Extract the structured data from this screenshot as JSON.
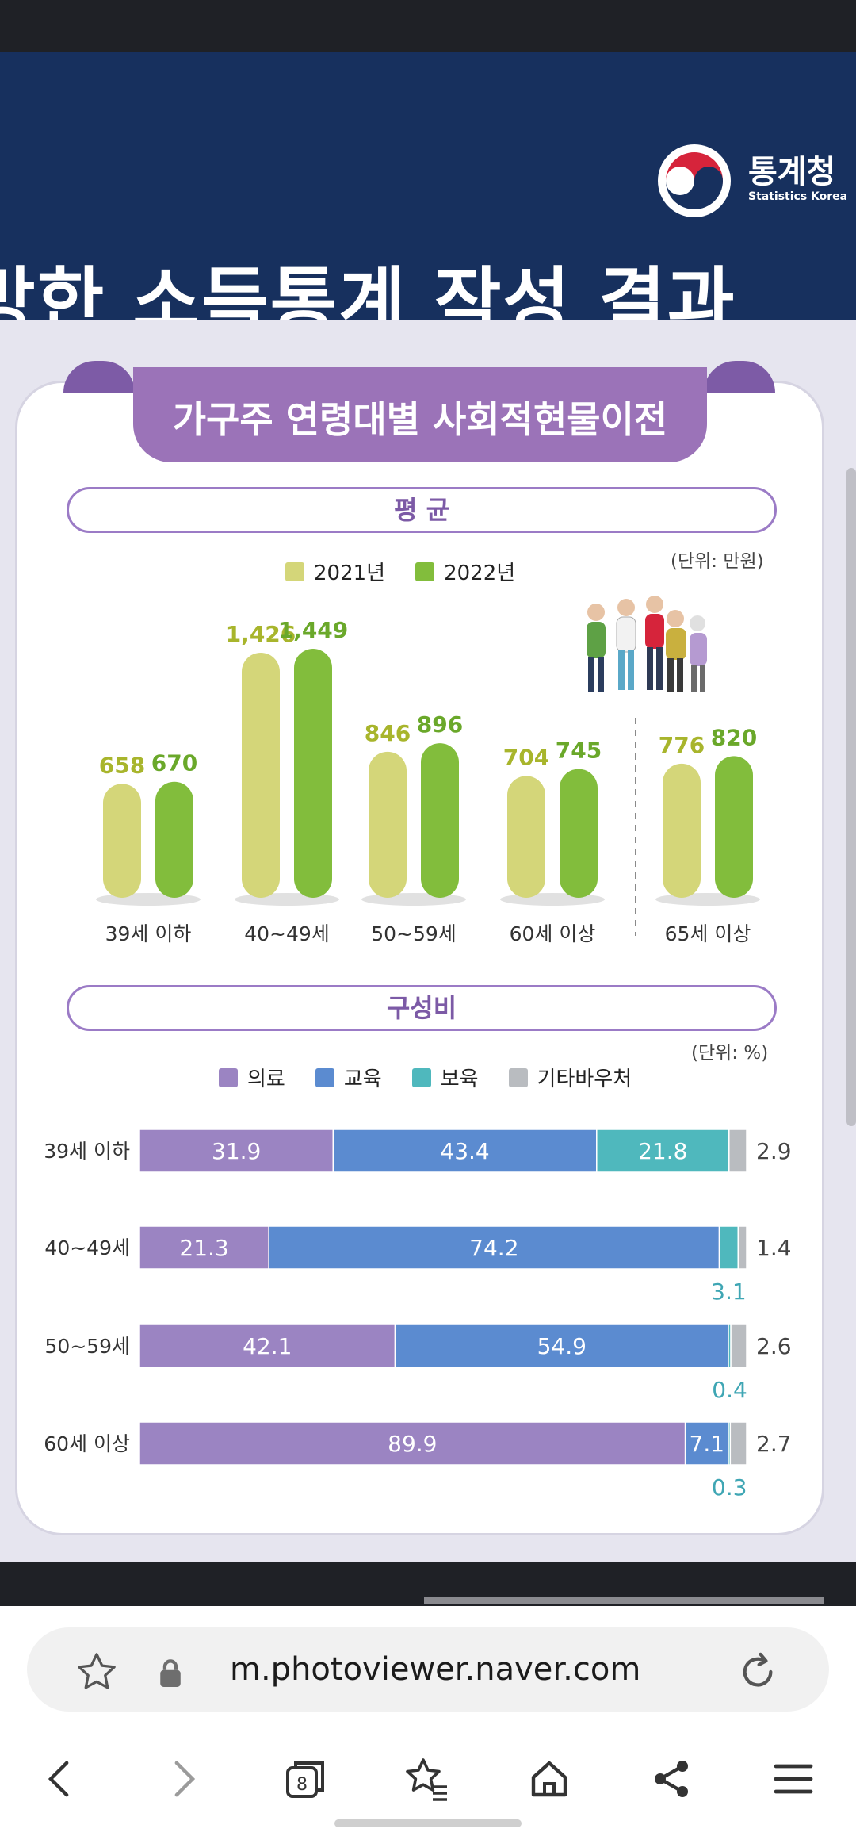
{
  "banner": {
    "title": "방한 소득통계 작성 결과",
    "logo_text": "통계청",
    "logo_sub": "Statistics Korea"
  },
  "card": {
    "title": "가구주 연령대별 사회적현물이전",
    "section1": {
      "label": "평 균",
      "unit": "(단위: 만원)"
    },
    "section2": {
      "label": "구성비",
      "unit": "(단위: %)"
    }
  },
  "chart_data": [
    {
      "type": "bar",
      "categories": [
        "39세 이하",
        "40~49세",
        "50~59세",
        "60세 이상",
        "65세 이상"
      ],
      "series": [
        {
          "name": "2021년",
          "values": [
            658,
            1426,
            846,
            704,
            776
          ],
          "labels": [
            "658",
            "1,426",
            "846",
            "704",
            "776"
          ]
        },
        {
          "name": "2022년",
          "values": [
            670,
            1449,
            896,
            745,
            820
          ],
          "labels": [
            "670",
            "1,449",
            "896",
            "745",
            "820"
          ]
        }
      ],
      "colors": [
        "#d4d679",
        "#82bd3c"
      ],
      "label_colors": [
        "#a8b52c",
        "#6aa82a"
      ],
      "unit": "(단위: 만원)"
    },
    {
      "type": "bar",
      "orientation": "horizontal-stacked",
      "categories": [
        "39세 이하",
        "40~49세",
        "50~59세",
        "60세 이상"
      ],
      "series": [
        {
          "name": "의료",
          "values": [
            31.9,
            21.3,
            42.1,
            89.9
          ]
        },
        {
          "name": "교육",
          "values": [
            43.4,
            74.2,
            54.9,
            7.1
          ]
        },
        {
          "name": "보육",
          "values": [
            21.8,
            3.1,
            0.4,
            0.3
          ]
        },
        {
          "name": "기타바우처",
          "values": [
            2.9,
            1.4,
            2.6,
            2.7
          ]
        }
      ],
      "colors": [
        "#9b84c2",
        "#5b8bd0",
        "#4fb8bd",
        "#b9bcc0"
      ],
      "unit": "(단위: %)"
    }
  ],
  "browser": {
    "url": "m.photoviewer.naver.com",
    "tab_count": "8"
  }
}
